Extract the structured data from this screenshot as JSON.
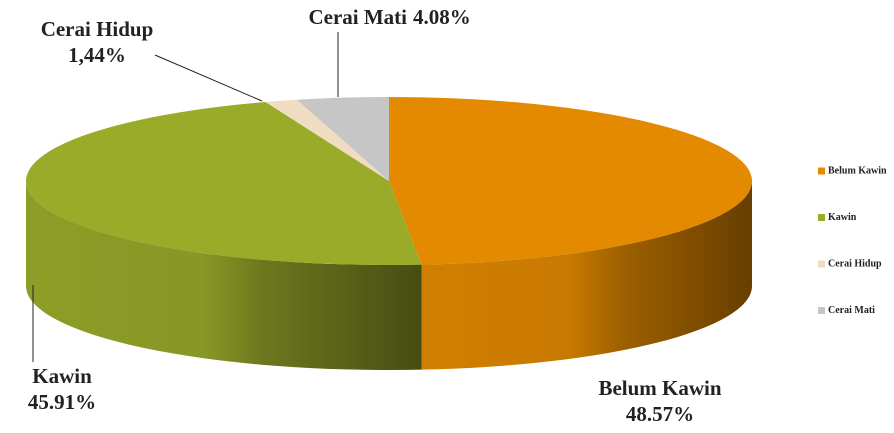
{
  "chart_data": {
    "type": "pie",
    "categories": [
      "Belum Kawin",
      "Kawin",
      "Cerai Hidup",
      "Cerai Mati"
    ],
    "values": [
      48.57,
      45.91,
      1.44,
      4.08
    ],
    "value_labels": [
      "48.57%",
      "45.91%",
      "1,44%",
      "4.08%"
    ],
    "colors": [
      "#e38a00",
      "#9aab2a",
      "#f0dcc0",
      "#c6c6c6"
    ],
    "legend": "right"
  }
}
